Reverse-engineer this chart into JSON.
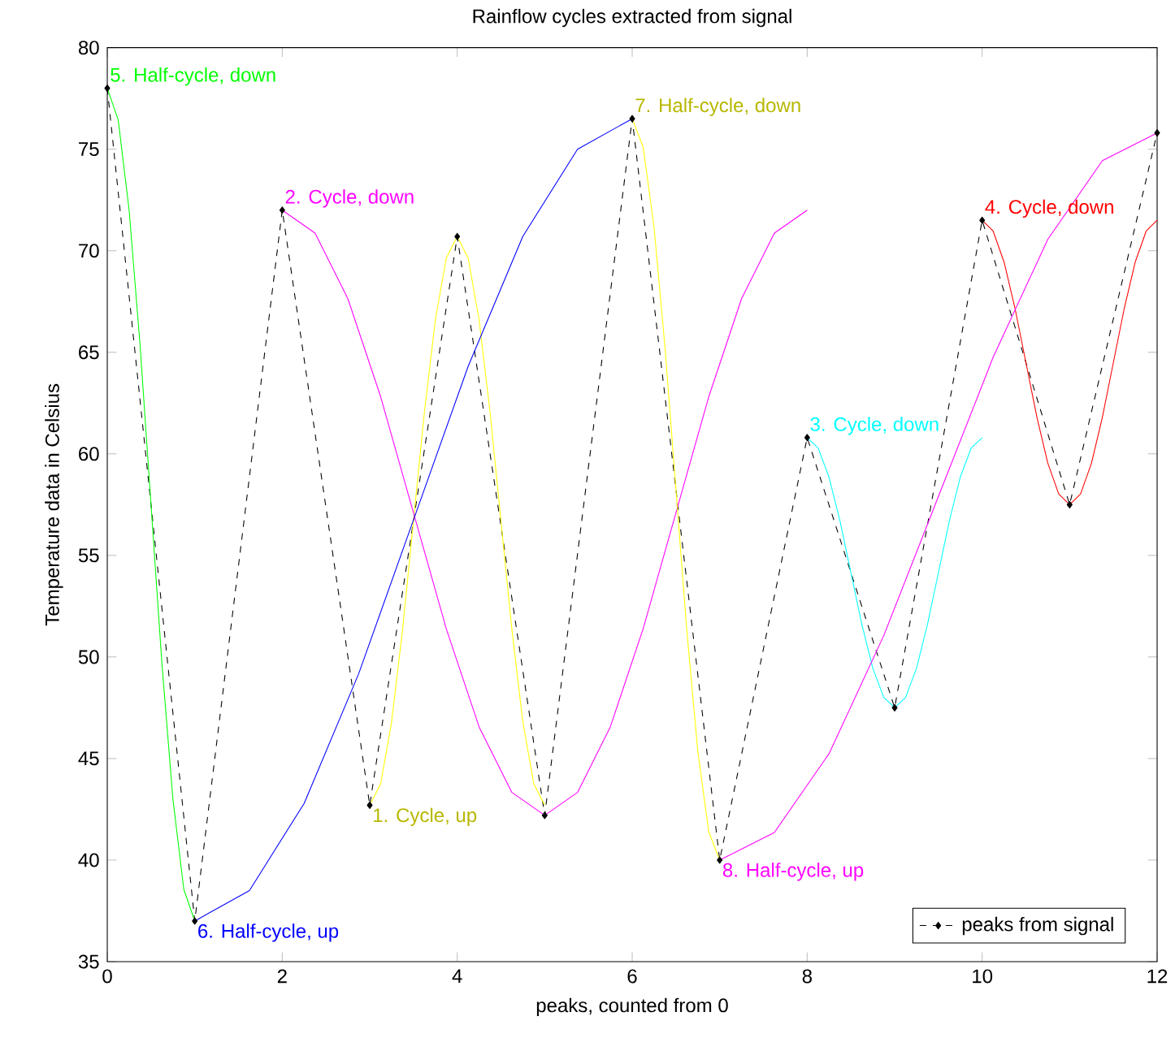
{
  "chart_data": {
    "type": "line",
    "title": "Rainflow cycles extracted from signal",
    "xlabel": "peaks, counted from 0",
    "ylabel": "Temperature data in Celsius",
    "xlim": [
      0,
      12
    ],
    "ylim": [
      35,
      80
    ],
    "xticks": [
      0,
      2,
      4,
      6,
      8,
      10,
      12
    ],
    "yticks": [
      35,
      40,
      45,
      50,
      55,
      60,
      65,
      70,
      75,
      80
    ],
    "grid": false,
    "legend": "bottom right",
    "series": [
      {
        "name": "peaks from signal",
        "color": "#000000",
        "line_style": "dashed",
        "marker": "diamond",
        "x": [
          0,
          1,
          2,
          3,
          4,
          5,
          6,
          7,
          8,
          9,
          10,
          11,
          12
        ],
        "values": [
          78,
          37,
          72,
          42.7,
          70.7,
          42.2,
          76.5,
          40,
          60.8,
          47.5,
          71.5,
          57.5,
          75.8
        ]
      },
      {
        "color": "#ffff00",
        "line_style": "solid",
        "marker": "none",
        "x": [
          3,
          3.125,
          3.25,
          3.375,
          3.5,
          3.625,
          3.75,
          3.875,
          4,
          4.125,
          4.25,
          4.375,
          4.5,
          4.625,
          4.75,
          4.875,
          5
        ],
        "values": [
          42.7,
          43.76,
          46.8,
          51.34,
          56.7,
          62.06,
          66.6,
          69.64,
          70.7,
          69.64,
          66.6,
          62.06,
          56.7,
          51.34,
          46.8,
          43.76,
          42.7
        ]
      },
      {
        "color": "#ff00ff",
        "line_style": "solid",
        "marker": "none",
        "x": [
          2,
          2.375,
          2.75,
          3.125,
          3.5,
          3.875,
          4.25,
          4.625,
          5,
          5.375,
          5.75,
          6.125,
          6.5,
          6.875,
          7.25,
          7.625,
          8
        ],
        "values": [
          72,
          70.87,
          67.64,
          62.81,
          57.1,
          51.39,
          46.56,
          43.33,
          42.2,
          43.33,
          46.56,
          51.39,
          57.1,
          62.81,
          67.64,
          70.87,
          72
        ]
      },
      {
        "color": "#00ffff",
        "line_style": "solid",
        "marker": "none",
        "x": [
          8,
          8.125,
          8.25,
          8.375,
          8.5,
          8.625,
          8.75,
          8.875,
          9,
          9.125,
          9.25,
          9.375,
          9.5,
          9.625,
          9.75,
          9.875,
          10
        ],
        "values": [
          60.8,
          60.29,
          58.85,
          56.7,
          54.15,
          51.6,
          49.45,
          48.01,
          47.5,
          48.01,
          49.45,
          51.6,
          54.15,
          56.7,
          58.85,
          60.29,
          60.8
        ]
      },
      {
        "color": "#ff0000",
        "line_style": "solid",
        "marker": "none",
        "x": [
          10,
          10.125,
          10.25,
          10.375,
          10.5,
          10.625,
          10.75,
          10.875,
          11,
          11.125,
          11.25,
          11.375,
          11.5,
          11.625,
          11.75,
          11.875,
          12
        ],
        "values": [
          71.5,
          70.97,
          69.45,
          67.18,
          64.5,
          61.82,
          59.55,
          58.03,
          57.5,
          58.03,
          59.55,
          61.82,
          64.5,
          67.18,
          69.45,
          70.97,
          71.5
        ]
      },
      {
        "color": "#00ff00",
        "line_style": "solid",
        "marker": "none",
        "x": [
          0,
          0.125,
          0.25,
          0.375,
          0.5,
          0.625,
          0.75,
          0.875,
          1
        ],
        "values": [
          78,
          76.44,
          71.99,
          65.35,
          57.5,
          49.65,
          43.01,
          38.56,
          37
        ]
      },
      {
        "color": "#0000ff",
        "line_style": "solid",
        "marker": "none",
        "x": [
          1,
          1.625,
          2.25,
          2.875,
          3.5,
          4.125,
          4.75,
          5.375,
          6
        ],
        "values": [
          37,
          38.5,
          42.79,
          49.19,
          56.75,
          64.31,
          70.71,
          75,
          76.5
        ]
      },
      {
        "color": "#ffff00",
        "line_style": "solid",
        "marker": "none",
        "x": [
          6,
          6.125,
          6.25,
          6.375,
          6.5,
          6.625,
          6.75,
          6.875,
          7
        ],
        "values": [
          76.5,
          75.11,
          71.15,
          65.24,
          58.25,
          51.26,
          45.35,
          41.39,
          40
        ]
      },
      {
        "color": "#ff00ff",
        "line_style": "solid",
        "marker": "none",
        "x": [
          7,
          7.625,
          8.25,
          8.875,
          9.5,
          10.125,
          10.75,
          11.375,
          12
        ],
        "values": [
          40,
          41.36,
          45.24,
          51.05,
          57.9,
          64.75,
          70.56,
          74.44,
          75.8
        ]
      }
    ],
    "annotations": [
      {
        "text": "1. Cycle, up",
        "x": 3,
        "y": 42.7
      },
      {
        "text": "2. Cycle, down",
        "x": 2,
        "y": 72
      },
      {
        "text": "3. Cycle, down",
        "x": 8,
        "y": 60.8
      },
      {
        "text": "4. Cycle, down",
        "x": 10,
        "y": 71.5
      },
      {
        "text": "5. Half-cycle, down",
        "x": 0,
        "y": 78
      },
      {
        "text": "6. Half-cycle, up",
        "x": 1,
        "y": 37
      },
      {
        "text": "7. Half-cycle, down",
        "x": 6,
        "y": 76.5
      },
      {
        "text": "8. Half-cycle, up",
        "x": 7,
        "y": 40
      }
    ]
  }
}
